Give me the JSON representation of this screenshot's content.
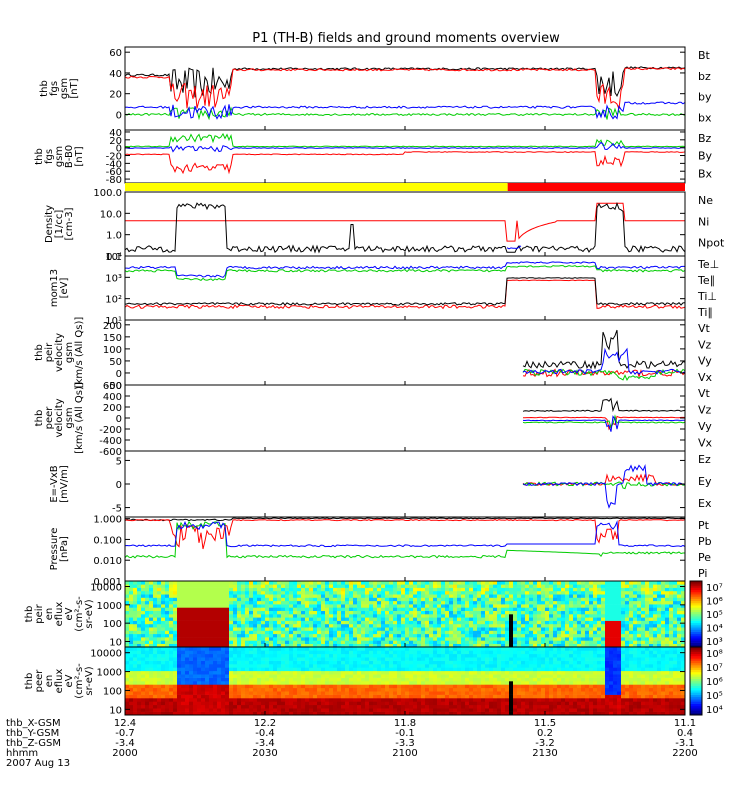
{
  "chart_data": {
    "type": "line",
    "title": "P1 (TH-B) fields and ground moments overview",
    "panels": [
      {
        "id": "fgs_b",
        "ylabel": [
          "thb",
          "fgs",
          "gsm",
          "[nT]"
        ],
        "ylim": [
          -15,
          65
        ],
        "ticks": [
          0,
          20,
          40,
          60
        ],
        "scale": "linear",
        "legend": [
          {
            "label": "Bt",
            "color": "#000000"
          },
          {
            "label": "bz",
            "color": "#ff0000"
          },
          {
            "label": "by",
            "color": "#00cc00"
          },
          {
            "label": "bx",
            "color": "#0000ff"
          }
        ]
      },
      {
        "id": "fgs_sub",
        "ylabel": [
          "thb",
          "fgs",
          "gsm",
          "B-B0",
          "[nT]"
        ],
        "ylim": [
          -90,
          45
        ],
        "ticks": [
          -80,
          -60,
          -40,
          -20,
          0,
          20,
          40
        ],
        "scale": "linear",
        "legend": [
          {
            "label": "Bz",
            "color": "#ff0000"
          },
          {
            "label": "By",
            "color": "#00cc00"
          },
          {
            "label": "Bx",
            "color": "#0000ff"
          }
        ]
      },
      {
        "id": "density",
        "ylabel": [
          "Density",
          "[1/cc]",
          "[cm-3]"
        ],
        "ylim": [
          0.1,
          100
        ],
        "ticks": [
          "0.1",
          "1.0",
          "10.0",
          "100.0"
        ],
        "scale": "log",
        "legend": [
          {
            "label": "Ne",
            "color": "#ff0000"
          },
          {
            "label": "Ni",
            "color": "#000000"
          },
          {
            "label": "Npot",
            "color": "#0000ff"
          }
        ]
      },
      {
        "id": "temperature",
        "ylabel": [
          "mom13",
          "[eV]"
        ],
        "ylim": [
          10,
          10000
        ],
        "ticks": [
          "10¹",
          "10²",
          "10³",
          "10⁴"
        ],
        "scale": "log",
        "legend": [
          {
            "label": "Te⊥",
            "color": "#ff0000"
          },
          {
            "label": "Te∥",
            "color": "#000000"
          },
          {
            "label": "Ti⊥",
            "color": "#0000ff"
          },
          {
            "label": "Ti∥",
            "color": "#00cc00"
          }
        ]
      },
      {
        "id": "peir_vel",
        "ylabel": [
          "thb",
          "peir",
          "velocity",
          "gsm",
          "[km/s (All Qs)]"
        ],
        "ylim": [
          -50,
          220
        ],
        "ticks": [
          -50,
          0,
          50,
          100,
          150,
          200
        ],
        "scale": "linear",
        "legend": [
          {
            "label": "Vt",
            "color": "#000000"
          },
          {
            "label": "Vz",
            "color": "#ff0000"
          },
          {
            "label": "Vy",
            "color": "#00cc00"
          },
          {
            "label": "Vx",
            "color": "#0000ff"
          }
        ]
      },
      {
        "id": "peer_vel",
        "ylabel": [
          "thb",
          "peer",
          "velocity",
          "gsm",
          "[km/s (All Qs)]"
        ],
        "ylim": [
          -600,
          600
        ],
        "ticks": [
          -600,
          -400,
          -200,
          0,
          200,
          400,
          600
        ],
        "scale": "linear",
        "legend": [
          {
            "label": "Vt",
            "color": "#000000"
          },
          {
            "label": "Vz",
            "color": "#ff0000"
          },
          {
            "label": "Vy",
            "color": "#00cc00"
          },
          {
            "label": "Vx",
            "color": "#0000ff"
          }
        ]
      },
      {
        "id": "efield",
        "ylabel": [
          "E=-VxB",
          "[mV/m]"
        ],
        "ylim": [
          -7,
          7
        ],
        "ticks": [
          -5,
          0,
          5
        ],
        "scale": "linear",
        "legend": [
          {
            "label": "Ez",
            "color": "#ff0000"
          },
          {
            "label": "Ey",
            "color": "#00cc00"
          },
          {
            "label": "Ex",
            "color": "#0000ff"
          }
        ]
      },
      {
        "id": "pressure",
        "ylabel": [
          "Pressure",
          "[nPa]"
        ],
        "ylim": [
          0.001,
          1.2
        ],
        "ticks": [
          "0.001",
          "0.010",
          "0.100",
          "1.000"
        ],
        "scale": "log",
        "legend": [
          {
            "label": "Pt",
            "color": "#000000"
          },
          {
            "label": "Pb",
            "color": "#ff0000"
          },
          {
            "label": "Pe",
            "color": "#00cc00"
          },
          {
            "label": "Pi",
            "color": "#0000ff"
          }
        ]
      },
      {
        "id": "peir_spec",
        "ylabel": [
          "thb",
          "peir",
          "en",
          "eflux",
          "eV",
          "(cm²-s-",
          "sr-eV)"
        ],
        "ylim": [
          5,
          20000
        ],
        "ticks": [
          "10",
          "100",
          "1000",
          "10000"
        ],
        "scale": "log",
        "colorbar": [
          "10³",
          "10⁴",
          "10⁵",
          "10⁶",
          "10⁷"
        ]
      },
      {
        "id": "peer_spec",
        "ylabel": [
          "thb",
          "peer",
          "en",
          "eflux",
          "eV",
          "(cm²-s-",
          "sr-eV)"
        ],
        "ylim": [
          5,
          20000
        ],
        "ticks": [
          "10",
          "100",
          "1000",
          "10000"
        ],
        "scale": "log",
        "colorbar": [
          "10⁴",
          "10⁵",
          "10⁶",
          "10⁷",
          "10⁸"
        ]
      }
    ],
    "mode_bar": [
      {
        "from": "2000",
        "to": "2122",
        "color": "#ffff00"
      },
      {
        "from": "2122",
        "to": "2200",
        "color": "#ff0000"
      }
    ],
    "x_axis": {
      "rows": [
        {
          "label": "thb_X-GSM",
          "values": [
            "12.4",
            "12.2",
            "11.8",
            "11.5",
            "11.1"
          ]
        },
        {
          "label": "thb_Y-GSM",
          "values": [
            "-0.7",
            "-0.4",
            "-0.1",
            "0.2",
            "0.4"
          ]
        },
        {
          "label": "thb_Z-GSM",
          "values": [
            "-3.4",
            "-3.4",
            "-3.3",
            "-3.2",
            "-3.1"
          ]
        },
        {
          "label": "hhmm",
          "values": [
            "2000",
            "2030",
            "2100",
            "2130",
            "2200"
          ]
        }
      ],
      "date": "2007 Aug 13"
    }
  }
}
